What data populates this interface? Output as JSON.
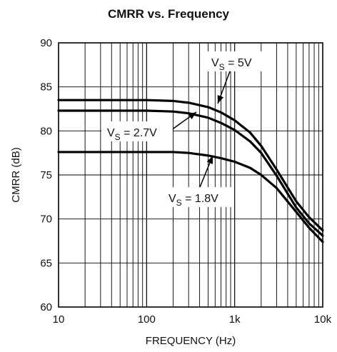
{
  "chart_data": {
    "type": "line",
    "title": "CMRR vs. Frequency",
    "xlabel": "FREQUENCY (Hz)",
    "ylabel": "CMRR (dB)",
    "x_scale": "log",
    "xlim": [
      10,
      10000
    ],
    "ylim": [
      60,
      90
    ],
    "x_ticks": [
      {
        "value": 10,
        "label": "10"
      },
      {
        "value": 100,
        "label": "100"
      },
      {
        "value": 1000,
        "label": "1k"
      },
      {
        "value": 10000,
        "label": "10k"
      }
    ],
    "y_ticks": [
      60,
      65,
      70,
      75,
      80,
      85,
      90
    ],
    "grid": true,
    "legend": "none",
    "series": [
      {
        "name": "5V",
        "annotation": {
          "prefix": "V",
          "sub": "S",
          "suffix": " = 5V"
        },
        "x": [
          10,
          100,
          200,
          300,
          500,
          700,
          1000,
          1500,
          2000,
          3000,
          5000,
          7000,
          10000
        ],
        "y": [
          83.5,
          83.5,
          83.4,
          83.2,
          82.7,
          82.1,
          81.2,
          79.8,
          78.3,
          75.6,
          72.0,
          70.2,
          68.7
        ]
      },
      {
        "name": "2.7V",
        "annotation": {
          "prefix": "V",
          "sub": "S",
          "suffix": " = 2.7V"
        },
        "x": [
          10,
          100,
          200,
          300,
          500,
          700,
          1000,
          1500,
          2000,
          3000,
          5000,
          7000,
          10000
        ],
        "y": [
          82.3,
          82.3,
          82.2,
          82.0,
          81.5,
          80.9,
          80.1,
          78.8,
          77.5,
          74.9,
          71.3,
          69.5,
          68.1
        ]
      },
      {
        "name": "1.8V",
        "annotation": {
          "prefix": "V",
          "sub": "S",
          "suffix": " = 1.8V"
        },
        "x": [
          10,
          100,
          200,
          300,
          500,
          700,
          1000,
          1500,
          2000,
          3000,
          5000,
          7000,
          10000
        ],
        "y": [
          77.6,
          77.6,
          77.6,
          77.5,
          77.2,
          76.9,
          76.5,
          75.8,
          75.0,
          73.5,
          70.8,
          69.0,
          67.4
        ]
      }
    ]
  }
}
